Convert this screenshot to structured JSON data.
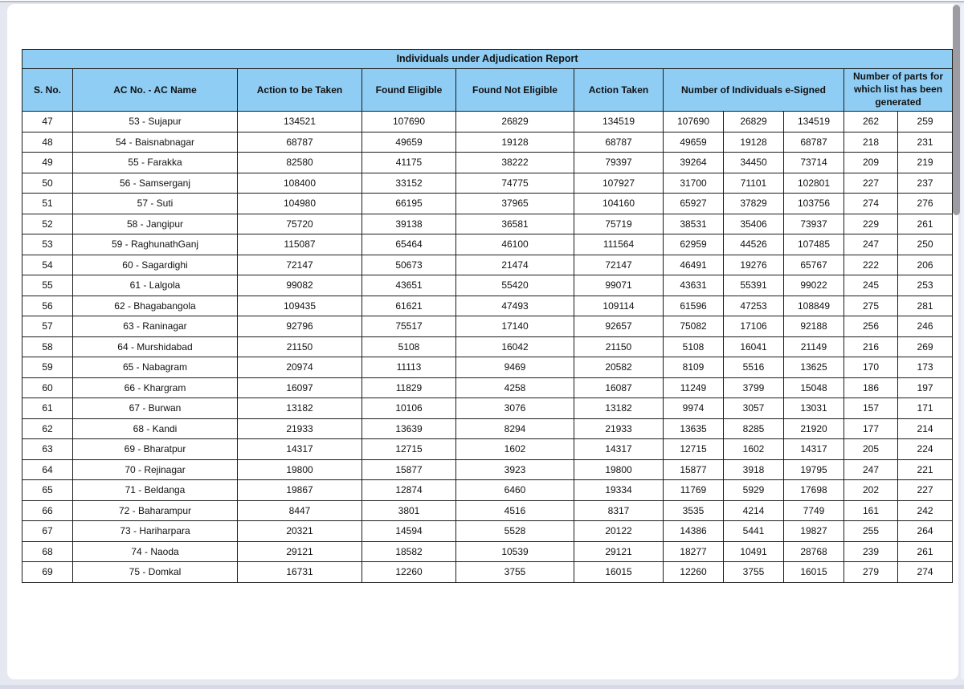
{
  "table": {
    "title": "Individuals under Adjudication Report",
    "columns": {
      "sno": "S. No.",
      "ac": "AC No. - AC Name",
      "action_to_be_taken": "Action to be Taken",
      "found_eligible": "Found Eligible",
      "found_not_eligible": "Found Not Eligible",
      "action_taken": "Action Taken",
      "esigned_group": "Number of Individuals e-Signed",
      "parts_group": "Number of parts for which list has been generated"
    },
    "rows": [
      {
        "sno": "47",
        "ac": "53 - Sujapur",
        "values": [
          "134521",
          "107690",
          "26829",
          "134519",
          "107690",
          "26829",
          "134519",
          "262",
          "259"
        ]
      },
      {
        "sno": "48",
        "ac": "54 - Baisnabnagar",
        "values": [
          "68787",
          "49659",
          "19128",
          "68787",
          "49659",
          "19128",
          "68787",
          "218",
          "231"
        ]
      },
      {
        "sno": "49",
        "ac": "55 - Farakka",
        "values": [
          "82580",
          "41175",
          "38222",
          "79397",
          "39264",
          "34450",
          "73714",
          "209",
          "219"
        ]
      },
      {
        "sno": "50",
        "ac": "56 - Samserganj",
        "values": [
          "108400",
          "33152",
          "74775",
          "107927",
          "31700",
          "71101",
          "102801",
          "227",
          "237"
        ]
      },
      {
        "sno": "51",
        "ac": "57 - Suti",
        "values": [
          "104980",
          "66195",
          "37965",
          "104160",
          "65927",
          "37829",
          "103756",
          "274",
          "276"
        ]
      },
      {
        "sno": "52",
        "ac": "58 - Jangipur",
        "values": [
          "75720",
          "39138",
          "36581",
          "75719",
          "38531",
          "35406",
          "73937",
          "229",
          "261"
        ]
      },
      {
        "sno": "53",
        "ac": "59 - RaghunathGanj",
        "values": [
          "115087",
          "65464",
          "46100",
          "111564",
          "62959",
          "44526",
          "107485",
          "247",
          "250"
        ]
      },
      {
        "sno": "54",
        "ac": "60 - Sagardighi",
        "values": [
          "72147",
          "50673",
          "21474",
          "72147",
          "46491",
          "19276",
          "65767",
          "222",
          "206"
        ]
      },
      {
        "sno": "55",
        "ac": "61 - Lalgola",
        "values": [
          "99082",
          "43651",
          "55420",
          "99071",
          "43631",
          "55391",
          "99022",
          "245",
          "253"
        ]
      },
      {
        "sno": "56",
        "ac": "62 - Bhagabangola",
        "values": [
          "109435",
          "61621",
          "47493",
          "109114",
          "61596",
          "47253",
          "108849",
          "275",
          "281"
        ]
      },
      {
        "sno": "57",
        "ac": "63 - Raninagar",
        "values": [
          "92796",
          "75517",
          "17140",
          "92657",
          "75082",
          "17106",
          "92188",
          "256",
          "246"
        ]
      },
      {
        "sno": "58",
        "ac": "64 - Murshidabad",
        "values": [
          "21150",
          "5108",
          "16042",
          "21150",
          "5108",
          "16041",
          "21149",
          "216",
          "269"
        ]
      },
      {
        "sno": "59",
        "ac": "65 - Nabagram",
        "values": [
          "20974",
          "11113",
          "9469",
          "20582",
          "8109",
          "5516",
          "13625",
          "170",
          "173"
        ]
      },
      {
        "sno": "60",
        "ac": "66 - Khargram",
        "values": [
          "16097",
          "11829",
          "4258",
          "16087",
          "11249",
          "3799",
          "15048",
          "186",
          "197"
        ]
      },
      {
        "sno": "61",
        "ac": "67 - Burwan",
        "values": [
          "13182",
          "10106",
          "3076",
          "13182",
          "9974",
          "3057",
          "13031",
          "157",
          "171"
        ]
      },
      {
        "sno": "62",
        "ac": "68 - Kandi",
        "values": [
          "21933",
          "13639",
          "8294",
          "21933",
          "13635",
          "8285",
          "21920",
          "177",
          "214"
        ]
      },
      {
        "sno": "63",
        "ac": "69 - Bharatpur",
        "values": [
          "14317",
          "12715",
          "1602",
          "14317",
          "12715",
          "1602",
          "14317",
          "205",
          "224"
        ]
      },
      {
        "sno": "64",
        "ac": "70 - Rejinagar",
        "values": [
          "19800",
          "15877",
          "3923",
          "19800",
          "15877",
          "3918",
          "19795",
          "247",
          "221"
        ]
      },
      {
        "sno": "65",
        "ac": "71 - Beldanga",
        "values": [
          "19867",
          "12874",
          "6460",
          "19334",
          "11769",
          "5929",
          "17698",
          "202",
          "227"
        ]
      },
      {
        "sno": "66",
        "ac": "72 - Baharampur",
        "values": [
          "8447",
          "3801",
          "4516",
          "8317",
          "3535",
          "4214",
          "7749",
          "161",
          "242"
        ]
      },
      {
        "sno": "67",
        "ac": "73 - Hariharpara",
        "values": [
          "20321",
          "14594",
          "5528",
          "20122",
          "14386",
          "5441",
          "19827",
          "255",
          "264"
        ]
      },
      {
        "sno": "68",
        "ac": "74 - Naoda",
        "values": [
          "29121",
          "18582",
          "10539",
          "29121",
          "18277",
          "10491",
          "28768",
          "239",
          "261"
        ]
      },
      {
        "sno": "69",
        "ac": "75 - Domkal",
        "values": [
          "16731",
          "12260",
          "3755",
          "16015",
          "12260",
          "3755",
          "16015",
          "279",
          "274"
        ]
      }
    ]
  },
  "colors": {
    "header_bg": "#8fcdf4",
    "table_border": "#1c1c1c",
    "page_bg": "#ffffff",
    "canvas_bg": "#e6e8f1",
    "scrollbar_thumb": "#9c9ca2"
  }
}
